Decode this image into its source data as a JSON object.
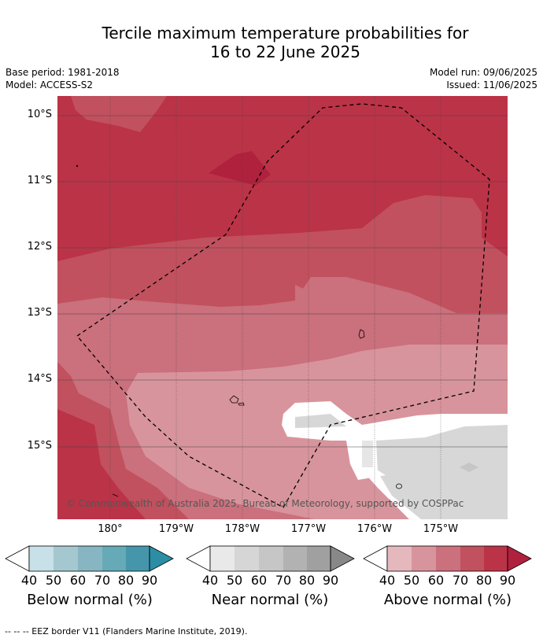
{
  "title_line1": "Tercile maximum temperature probabilities for",
  "title_line2": "16 to 22 June 2025",
  "base_period": "Base period: 1981-2018",
  "model": "Model: ACCESS-S2",
  "model_run": "Model run: 09/06/2025",
  "issued": "Issued: 11/06/2025",
  "lat_labels": [
    "10°S",
    "11°S",
    "12°S",
    "13°S",
    "14°S",
    "15°S"
  ],
  "lon_labels": [
    "180°",
    "179°W",
    "178°W",
    "177°W",
    "176°W",
    "175°W"
  ],
  "copyright": "© Commonwealth of Australia 2025, Bureau of Meteorology, supported by COSPPac",
  "legends": [
    {
      "title": "Below normal (%)",
      "ticks": [
        "40",
        "50",
        "60",
        "70",
        "80",
        "90"
      ],
      "colors": [
        "#c8e1e8",
        "#a5c7d0",
        "#87b6c2",
        "#66a9b7",
        "#4596aa",
        "#2b8ea5"
      ]
    },
    {
      "title": "Near normal (%)",
      "ticks": [
        "40",
        "50",
        "60",
        "70",
        "80",
        "90"
      ],
      "colors": [
        "#e9e9e9",
        "#d6d6d6",
        "#c6c6c6",
        "#b2b2b2",
        "#a0a0a0",
        "#888888"
      ]
    },
    {
      "title": "Above normal (%)",
      "ticks": [
        "40",
        "50",
        "60",
        "70",
        "80",
        "90"
      ],
      "colors": [
        "#e5b8bd",
        "#d8949c",
        "#cb707d",
        "#c1515e",
        "#bb3347",
        "#b0213d"
      ]
    }
  ],
  "footnote": "--  --  -- EEZ border V11 (Flanders Marine Institute, 2019).",
  "colors": {
    "above_90": "#b0213d",
    "above_80": "#bb3347",
    "above_70": "#c1515e",
    "above_60": "#cb707d",
    "above_50": "#d8949c",
    "near_40": "#d7d7d7",
    "near_lt40": "#e6e6e6"
  }
}
